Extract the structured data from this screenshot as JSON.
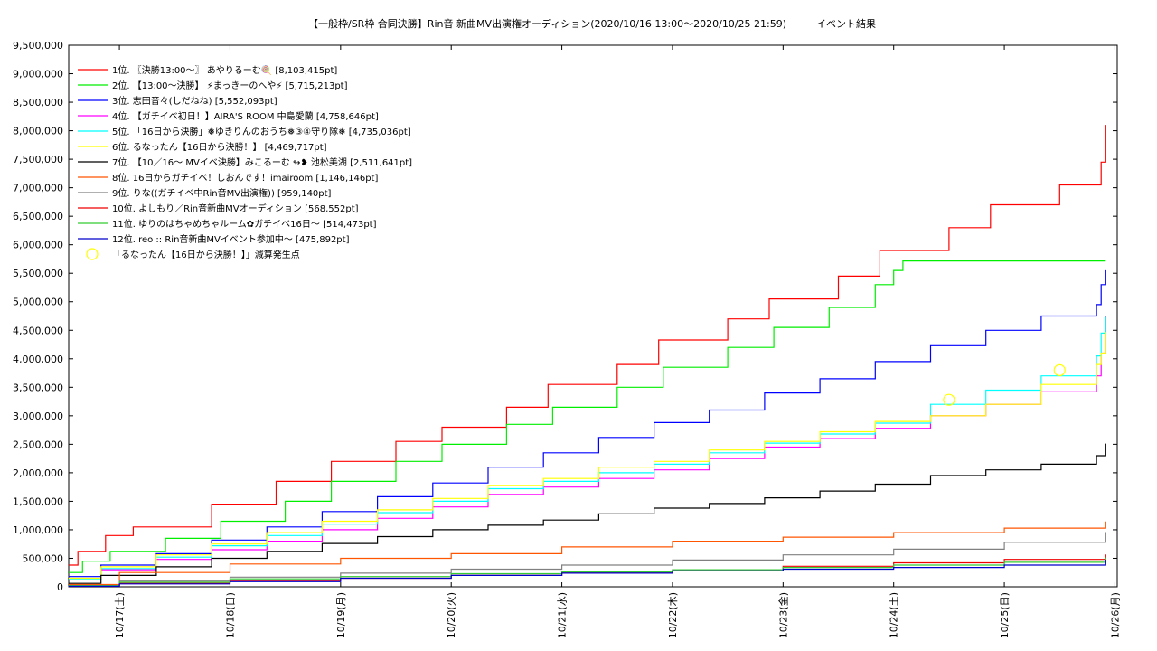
{
  "chart_data": {
    "type": "line",
    "title": "【一般枠/SR枠 合同決勝】Rin音 新曲MV出演権オーディション(2020/10/16 13:00〜2020/10/25 21:59)　　　イベント結果",
    "xlabel": "",
    "ylabel": "",
    "ylim": [
      0,
      9500000
    ],
    "y_ticks": [
      {
        "value": 0,
        "label": "0"
      },
      {
        "value": 500000,
        "label": "500,000"
      },
      {
        "value": 1000000,
        "label": "1,000,000"
      },
      {
        "value": 1500000,
        "label": "1,500,000"
      },
      {
        "value": 2000000,
        "label": "2,000,000"
      },
      {
        "value": 2500000,
        "label": "2,500,000"
      },
      {
        "value": 3000000,
        "label": "3,000,000"
      },
      {
        "value": 3500000,
        "label": "3,500,000"
      },
      {
        "value": 4000000,
        "label": "4,000,000"
      },
      {
        "value": 4500000,
        "label": "4,500,000"
      },
      {
        "value": 5000000,
        "label": "5,000,000"
      },
      {
        "value": 5500000,
        "label": "5,500,000"
      },
      {
        "value": 6000000,
        "label": "6,000,000"
      },
      {
        "value": 6500000,
        "label": "6,500,000"
      },
      {
        "value": 7000000,
        "label": "7,000,000"
      },
      {
        "value": 7500000,
        "label": "7,500,000"
      },
      {
        "value": 8000000,
        "label": "8,000,000"
      },
      {
        "value": 8500000,
        "label": "8,500,000"
      },
      {
        "value": 9000000,
        "label": "9,000,000"
      },
      {
        "value": 9500000,
        "label": "9,500,000"
      }
    ],
    "x_range": [
      "2020-10-16 13:00",
      "2020-10-26 00:30"
    ],
    "x_ticks": [
      {
        "value": "2020-10-17 00:00",
        "label": "10/17(土)"
      },
      {
        "value": "2020-10-18 00:00",
        "label": "10/18(日)"
      },
      {
        "value": "2020-10-19 00:00",
        "label": "10/19(月)"
      },
      {
        "value": "2020-10-20 00:00",
        "label": "10/20(火)"
      },
      {
        "value": "2020-10-21 00:00",
        "label": "10/21(水)"
      },
      {
        "value": "2020-10-22 00:00",
        "label": "10/22(木)"
      },
      {
        "value": "2020-10-23 00:00",
        "label": "10/23(金)"
      },
      {
        "value": "2020-10-24 00:00",
        "label": "10/24(土)"
      },
      {
        "value": "2020-10-25 00:00",
        "label": "10/25(日)"
      },
      {
        "value": "2020-10-26 00:00",
        "label": "10/26(月)"
      }
    ],
    "grid": true,
    "legend_position": "top-left",
    "series": [
      {
        "name": "1位. 〖決勝13:00〜〗 あやりるーむ🍭 [8,103,415pt]",
        "color": "#ff0000",
        "x": [
          "2020-10-16 13:00",
          "2020-10-16 15:00",
          "2020-10-16 21:00",
          "2020-10-17 03:00",
          "2020-10-17 20:00",
          "2020-10-18 10:00",
          "2020-10-18 22:00",
          "2020-10-19 12:00",
          "2020-10-19 22:00",
          "2020-10-20 12:00",
          "2020-10-20 21:00",
          "2020-10-21 12:00",
          "2020-10-21 21:00",
          "2020-10-22 12:00",
          "2020-10-22 21:00",
          "2020-10-23 12:00",
          "2020-10-23 21:00",
          "2020-10-24 12:00",
          "2020-10-24 21:00",
          "2020-10-25 12:00",
          "2020-10-25 21:00",
          "2020-10-25 22:00"
        ],
        "y": [
          380000,
          620000,
          900000,
          1050000,
          1450000,
          1850000,
          2200000,
          2550000,
          2800000,
          3150000,
          3550000,
          3900000,
          4330000,
          4700000,
          5050000,
          5450000,
          5900000,
          6300000,
          6700000,
          7050000,
          7450000,
          8103415
        ]
      },
      {
        "name": "2位. 【13:00〜決勝】 ⚡まっきーのへや⚡ [5,715,213pt]",
        "color": "#00ee00",
        "x": [
          "2020-10-16 13:00",
          "2020-10-16 16:00",
          "2020-10-16 22:00",
          "2020-10-17 10:00",
          "2020-10-17 22:00",
          "2020-10-18 12:00",
          "2020-10-18 22:00",
          "2020-10-19 12:00",
          "2020-10-19 22:00",
          "2020-10-20 12:00",
          "2020-10-20 22:00",
          "2020-10-21 12:00",
          "2020-10-21 22:00",
          "2020-10-22 12:00",
          "2020-10-22 22:00",
          "2020-10-23 10:00",
          "2020-10-23 20:00",
          "2020-10-24 00:00",
          "2020-10-24 02:00",
          "2020-10-25 22:00"
        ],
        "y": [
          250000,
          450000,
          620000,
          850000,
          1150000,
          1500000,
          1850000,
          2200000,
          2500000,
          2850000,
          3150000,
          3500000,
          3850000,
          4200000,
          4550000,
          4900000,
          5300000,
          5550000,
          5715213,
          5715213
        ]
      },
      {
        "name": "3位. 志田音々(しだねね) [5,552,093pt]",
        "color": "#0000ff",
        "x": [
          "2020-10-16 13:00",
          "2020-10-16 20:00",
          "2020-10-17 08:00",
          "2020-10-17 20:00",
          "2020-10-18 08:00",
          "2020-10-18 20:00",
          "2020-10-19 08:00",
          "2020-10-19 20:00",
          "2020-10-20 08:00",
          "2020-10-20 20:00",
          "2020-10-21 08:00",
          "2020-10-21 20:00",
          "2020-10-22 08:00",
          "2020-10-22 20:00",
          "2020-10-23 08:00",
          "2020-10-23 20:00",
          "2020-10-24 08:00",
          "2020-10-24 20:00",
          "2020-10-25 08:00",
          "2020-10-25 20:00",
          "2020-10-25 21:00",
          "2020-10-25 22:00"
        ],
        "y": [
          180000,
          380000,
          580000,
          820000,
          1050000,
          1320000,
          1580000,
          1820000,
          2100000,
          2350000,
          2620000,
          2880000,
          3100000,
          3400000,
          3650000,
          3950000,
          4230000,
          4500000,
          4750000,
          4950000,
          5300000,
          5552093
        ]
      },
      {
        "name": "4位. 【ガチイベ初日！】AIRA'S ROOM 中島愛蘭 [4,758,646pt]",
        "color": "#ff00ff",
        "x": [
          "2020-10-16 13:00",
          "2020-10-16 20:00",
          "2020-10-17 08:00",
          "2020-10-17 20:00",
          "2020-10-18 08:00",
          "2020-10-18 20:00",
          "2020-10-19 08:00",
          "2020-10-19 20:00",
          "2020-10-20 08:00",
          "2020-10-20 20:00",
          "2020-10-21 08:00",
          "2020-10-21 20:00",
          "2020-10-22 08:00",
          "2020-10-22 20:00",
          "2020-10-23 08:00",
          "2020-10-23 20:00",
          "2020-10-24 08:00",
          "2020-10-24 20:00",
          "2020-10-25 08:00",
          "2020-10-25 20:00",
          "2020-10-25 21:00",
          "2020-10-25 22:00"
        ],
        "y": [
          120000,
          300000,
          480000,
          650000,
          800000,
          1000000,
          1200000,
          1400000,
          1620000,
          1750000,
          1900000,
          2050000,
          2250000,
          2450000,
          2600000,
          2780000,
          3000000,
          3200000,
          3420000,
          3700000,
          4100000,
          4758646
        ]
      },
      {
        "name": "5位. 「16日から決勝」❅ゆきりんのおうち❅③④守り隊❅ [4,735,036pt]",
        "color": "#00ffff",
        "x": [
          "2020-10-16 13:00",
          "2020-10-16 20:00",
          "2020-10-17 08:00",
          "2020-10-17 20:00",
          "2020-10-18 08:00",
          "2020-10-18 20:00",
          "2020-10-19 08:00",
          "2020-10-19 20:00",
          "2020-10-20 08:00",
          "2020-10-20 20:00",
          "2020-10-21 08:00",
          "2020-10-21 20:00",
          "2020-10-22 08:00",
          "2020-10-22 20:00",
          "2020-10-23 08:00",
          "2020-10-23 20:00",
          "2020-10-24 08:00",
          "2020-10-24 20:00",
          "2020-10-25 08:00",
          "2020-10-25 20:00",
          "2020-10-25 21:00",
          "2020-10-25 22:00"
        ],
        "y": [
          130000,
          320000,
          520000,
          720000,
          900000,
          1100000,
          1300000,
          1500000,
          1720000,
          1850000,
          2000000,
          2150000,
          2350000,
          2520000,
          2680000,
          2870000,
          3200000,
          3450000,
          3700000,
          4050000,
          4450000,
          4735036
        ]
      },
      {
        "name": "6位. るなったん【16日から決勝！】 [4,469,717pt]",
        "color": "#ffff00",
        "x": [
          "2020-10-16 13:00",
          "2020-10-16 20:00",
          "2020-10-17 08:00",
          "2020-10-17 20:00",
          "2020-10-18 08:00",
          "2020-10-18 20:00",
          "2020-10-19 08:00",
          "2020-10-19 20:00",
          "2020-10-20 08:00",
          "2020-10-20 20:00",
          "2020-10-21 08:00",
          "2020-10-21 20:00",
          "2020-10-22 08:00",
          "2020-10-22 20:00",
          "2020-10-23 08:00",
          "2020-10-23 20:00",
          "2020-10-24 08:00",
          "2020-10-24 20:00",
          "2020-10-25 08:00",
          "2020-10-25 20:00",
          "2020-10-25 21:00",
          "2020-10-25 22:00"
        ],
        "y": [
          150000,
          350000,
          560000,
          750000,
          950000,
          1150000,
          1350000,
          1550000,
          1780000,
          1900000,
          2100000,
          2200000,
          2400000,
          2550000,
          2720000,
          2900000,
          3000000,
          3200000,
          3550000,
          3900000,
          4100000,
          4469717
        ]
      },
      {
        "name": "7位. 【10／16〜 MVイベ決勝】みこるーむ ↬❥ 池松美湖 [2,511,641pt]",
        "color": "#000000",
        "x": [
          "2020-10-16 13:00",
          "2020-10-16 20:00",
          "2020-10-17 08:00",
          "2020-10-17 20:00",
          "2020-10-18 08:00",
          "2020-10-18 20:00",
          "2020-10-19 08:00",
          "2020-10-19 20:00",
          "2020-10-20 08:00",
          "2020-10-20 20:00",
          "2020-10-21 08:00",
          "2020-10-21 20:00",
          "2020-10-22 08:00",
          "2020-10-22 20:00",
          "2020-10-23 08:00",
          "2020-10-23 20:00",
          "2020-10-24 08:00",
          "2020-10-24 20:00",
          "2020-10-25 08:00",
          "2020-10-25 20:00",
          "2020-10-25 22:00"
        ],
        "y": [
          60000,
          200000,
          350000,
          500000,
          620000,
          760000,
          880000,
          1000000,
          1080000,
          1170000,
          1280000,
          1380000,
          1460000,
          1560000,
          1680000,
          1800000,
          1950000,
          2050000,
          2150000,
          2300000,
          2511641
        ]
      },
      {
        "name": "8位. 16日からガチイベ！しおんです！imairoom [1,146,146pt]",
        "color": "#ff5500",
        "x": [
          "2020-10-16 13:00",
          "2020-10-17 00:00",
          "2020-10-18 00:00",
          "2020-10-19 00:00",
          "2020-10-20 00:00",
          "2020-10-21 00:00",
          "2020-10-22 00:00",
          "2020-10-23 00:00",
          "2020-10-24 00:00",
          "2020-10-25 00:00",
          "2020-10-25 22:00"
        ],
        "y": [
          40000,
          250000,
          400000,
          500000,
          580000,
          700000,
          800000,
          870000,
          950000,
          1030000,
          1146146
        ]
      },
      {
        "name": "9位. りな((ガチイベ中Rin音MV出演権)) [959,140pt]",
        "color": "#808080",
        "x": [
          "2020-10-16 13:00",
          "2020-10-17 00:00",
          "2020-10-18 00:00",
          "2020-10-19 00:00",
          "2020-10-20 00:00",
          "2020-10-21 00:00",
          "2020-10-22 00:00",
          "2020-10-23 00:00",
          "2020-10-24 00:00",
          "2020-10-25 00:00",
          "2020-10-25 22:00"
        ],
        "y": [
          20000,
          100000,
          170000,
          240000,
          310000,
          380000,
          470000,
          560000,
          660000,
          780000,
          959140
        ]
      },
      {
        "name": "10位. よしもり／Rin音新曲MVオーディション [568,552pt]",
        "color": "#ee0000",
        "x": [
          "2020-10-16 13:00",
          "2020-10-17 00:00",
          "2020-10-18 00:00",
          "2020-10-19 00:00",
          "2020-10-20 00:00",
          "2020-10-21 00:00",
          "2020-10-22 00:00",
          "2020-10-23 00:00",
          "2020-10-24 00:00",
          "2020-10-25 00:00",
          "2020-10-25 22:00"
        ],
        "y": [
          10000,
          60000,
          100000,
          150000,
          200000,
          250000,
          300000,
          360000,
          420000,
          480000,
          568552
        ]
      },
      {
        "name": "11位. ゆりのはちゃめちゃルーム✿ガチイベ16日〜 [514,473pt]",
        "color": "#33cc33",
        "x": [
          "2020-10-16 13:00",
          "2020-10-17 00:00",
          "2020-10-18 00:00",
          "2020-10-19 00:00",
          "2020-10-20 00:00",
          "2020-10-21 00:00",
          "2020-10-22 00:00",
          "2020-10-23 00:00",
          "2020-10-24 00:00",
          "2020-10-25 00:00",
          "2020-10-25 22:00"
        ],
        "y": [
          20000,
          80000,
          140000,
          180000,
          230000,
          260000,
          300000,
          340000,
          380000,
          430000,
          514473
        ]
      },
      {
        "name": "12位. reo :: Rin音新曲MVイベント参加中〜 [475,892pt]",
        "color": "#0000cc",
        "x": [
          "2020-10-16 13:00",
          "2020-10-17 00:00",
          "2020-10-18 00:00",
          "2020-10-19 00:00",
          "2020-10-20 00:00",
          "2020-10-21 00:00",
          "2020-10-22 00:00",
          "2020-10-23 00:00",
          "2020-10-24 00:00",
          "2020-10-25 00:00",
          "2020-10-25 22:00"
        ],
        "y": [
          10000,
          50000,
          90000,
          150000,
          200000,
          240000,
          280000,
          310000,
          340000,
          380000,
          475892
        ]
      }
    ],
    "markers": {
      "name": "「るなったん【16日から決勝！】」減算発生点",
      "color": "#ffff00",
      "points": [
        {
          "x": "2020-10-24 12:00",
          "y": 3280000
        },
        {
          "x": "2020-10-25 12:00",
          "y": 3800000
        }
      ]
    }
  }
}
